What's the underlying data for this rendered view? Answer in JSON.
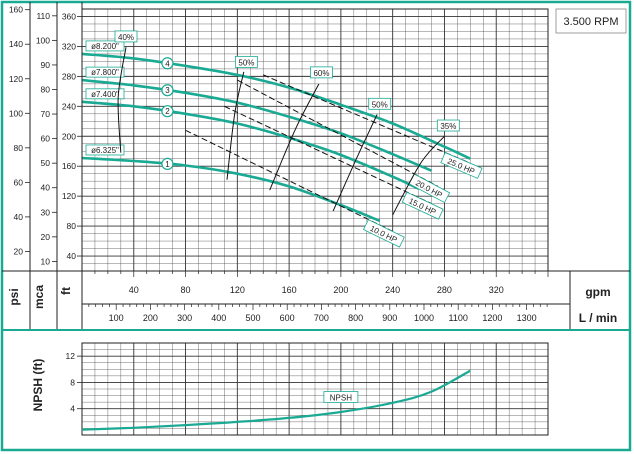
{
  "chart_data": [
    {
      "type": "line",
      "title": "",
      "rpm_label": "3.500 RPM",
      "x_unit": "gpm",
      "x_unit_alt": "L / min",
      "y_units": [
        "psi",
        "mca",
        "ft"
      ],
      "xlim": [
        0,
        360
      ],
      "ylim_ft": [
        20,
        370
      ],
      "x_ticks_gpm": [
        "40",
        "80",
        "120",
        "160",
        "200",
        "240",
        "280",
        "320"
      ],
      "x_ticks_lmin": [
        "100",
        "200",
        "300",
        "400",
        "500",
        "600",
        "700",
        "800",
        "900",
        "1000",
        "1100",
        "1200",
        "1300"
      ],
      "y_ticks_ft": [
        "40",
        "80",
        "120",
        "160",
        "200",
        "240",
        "280",
        "320",
        "360"
      ],
      "y_ticks_mca": [
        "10",
        "20",
        "30",
        "40",
        "50",
        "60",
        "70",
        "80",
        "90",
        "100",
        "110"
      ],
      "y_ticks_psi": [
        "20",
        "40",
        "60",
        "80",
        "100",
        "120",
        "140",
        "160"
      ],
      "grid": true,
      "colors": {
        "curve": "#1aaa94",
        "border": "#1aaa94",
        "grid": "#333333"
      },
      "series": [
        {
          "name": "ø8.200\"",
          "marker": "4",
          "x": [
            0,
            40,
            80,
            120,
            160,
            200,
            240,
            280,
            300
          ],
          "y": [
            310,
            304,
            294,
            282,
            265,
            242,
            217,
            186,
            170
          ]
        },
        {
          "name": "ø7.800\"",
          "marker": "3",
          "x": [
            0,
            40,
            80,
            120,
            160,
            200,
            240,
            270
          ],
          "y": [
            275,
            268,
            258,
            245,
            226,
            204,
            176,
            154
          ]
        },
        {
          "name": "ø7.400\"",
          "marker": "2",
          "x": [
            0,
            40,
            80,
            120,
            160,
            200,
            240,
            260
          ],
          "y": [
            246,
            240,
            230,
            217,
            198,
            175,
            146,
            130
          ]
        },
        {
          "name": "ø6.325\"",
          "marker": "1",
          "x": [
            0,
            40,
            80,
            120,
            160,
            200,
            230
          ],
          "y": [
            171,
            167,
            161,
            150,
            133,
            108,
            87
          ]
        }
      ],
      "efficiency_labels": [
        "40%",
        "50%",
        "60%",
        "50%",
        "35%"
      ],
      "power_lines": [
        {
          "label": "25.0 HP",
          "x": [
            140,
            300
          ],
          "y": [
            282,
            164
          ]
        },
        {
          "label": "20.0 HP",
          "x": [
            120,
            275
          ],
          "y": [
            275,
            133
          ]
        },
        {
          "label": "15.0 HP",
          "x": [
            110,
            270
          ],
          "y": [
            240,
            110
          ]
        },
        {
          "label": "10.0 HP",
          "x": [
            80,
            240
          ],
          "y": [
            208,
            73
          ]
        }
      ]
    },
    {
      "type": "line",
      "ylabel": "NPSH (ft)",
      "y_ticks": [
        "4",
        "8",
        "12"
      ],
      "ylim": [
        0,
        14
      ],
      "xlim": [
        0,
        360
      ],
      "series": [
        {
          "name": "NPSH",
          "x": [
            0,
            40,
            80,
            120,
            160,
            200,
            240,
            270,
            300
          ],
          "y": [
            0.8,
            1.1,
            1.5,
            2.0,
            2.6,
            3.5,
            4.9,
            6.6,
            9.8
          ]
        }
      ]
    }
  ]
}
